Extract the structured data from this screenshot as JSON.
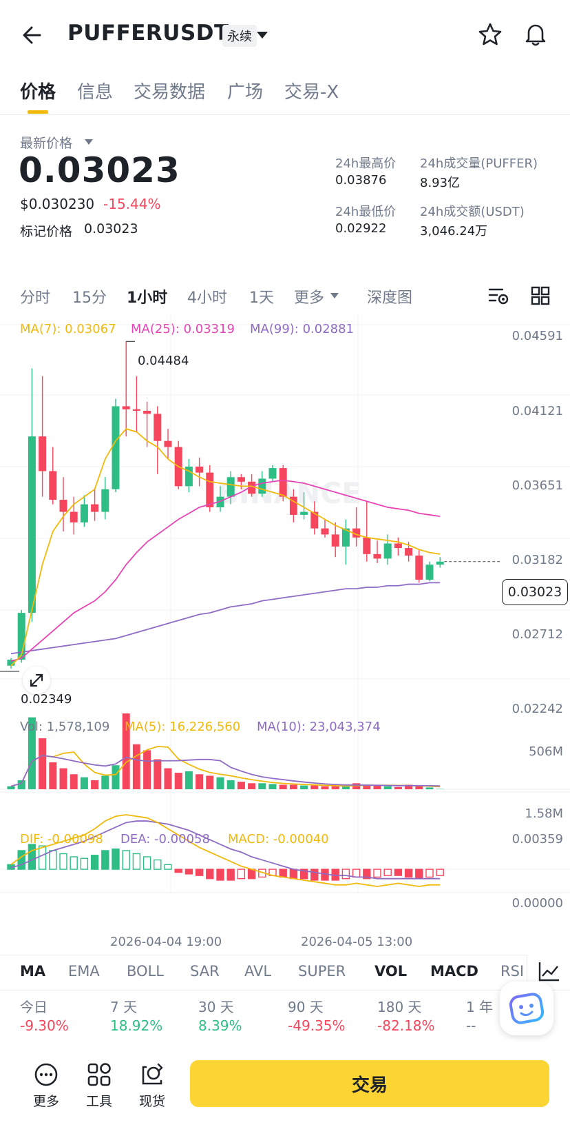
{
  "header": {
    "symbol": "PUFFERUSDT",
    "contract_type": "永续"
  },
  "tabs": [
    "价格",
    "信息",
    "交易数据",
    "广场",
    "交易-X"
  ],
  "price": {
    "latest_label": "最新价格",
    "last": "0.03023",
    "usd": "$0.030230",
    "change": "-15.44%",
    "mark_label": "标记价格",
    "mark": "0.03023"
  },
  "stats": {
    "high_label": "24h最高价",
    "high": "0.03876",
    "vol_label": "24h成交量(PUFFER)",
    "vol": "8.93亿",
    "low_label": "24h最低价",
    "low": "0.02922",
    "turnover_label": "24h成交额(USDT)",
    "turnover": "3,046.24万"
  },
  "timeframes": [
    "分时",
    "15分",
    "1小时",
    "4小时",
    "1天",
    "更多",
    "深度图"
  ],
  "active_timeframe": "1小时",
  "ma_legend": {
    "ma7": "MA(7): 0.03067",
    "ma25": "MA(25): 0.03319",
    "ma99": "MA(99): 0.02881"
  },
  "price_axis": [
    "0.04591",
    "0.04121",
    "0.03651",
    "0.03182",
    "0.02712",
    "0.02242"
  ],
  "high_marker": "0.04484",
  "low_marker": "0.02349",
  "current_price_tag": "0.03023",
  "volume_legend": {
    "vol": "Vol: 1,578,109",
    "ma5": "MA(5): 16,226,560",
    "ma10": "MA(10): 23,043,374"
  },
  "volume_axis": [
    "506M",
    "1.58M"
  ],
  "macd_legend": {
    "dif": "DIF: -0.00098",
    "dea": "DEA: -0.00058",
    "macd": "MACD: -0.00040"
  },
  "macd_axis": [
    "0.00359",
    "0.00000"
  ],
  "time_axis": [
    "2026-04-04 19:00",
    "2026-04-05 13:00"
  ],
  "indicators": [
    "MA",
    "EMA",
    "BOLL",
    "SAR",
    "AVL",
    "SUPER",
    "VOL",
    "MACD",
    "RSI"
  ],
  "performance": [
    {
      "label": "今日",
      "value": "-9.30%"
    },
    {
      "label": "7 天",
      "value": "18.92%"
    },
    {
      "label": "30 天",
      "value": "8.39%"
    },
    {
      "label": "90 天",
      "value": "-49.35%"
    },
    {
      "label": "180 天",
      "value": "-82.18%"
    },
    {
      "label": "1 年",
      "value": "--"
    }
  ],
  "bottom_nav": {
    "more": "更多",
    "tools": "工具",
    "spot": "现货",
    "trade": "交易"
  },
  "watermark": "BINANCE",
  "colors": {
    "up": "#2ebd85",
    "down": "#f6465d",
    "accent": "#fcd535",
    "ma7": "#f0b90b",
    "ma25": "#e645b5",
    "ma99": "#8e6bc4"
  },
  "chart_data": {
    "type": "candlestick",
    "interval": "1小时",
    "ohlc": [
      [
        0.0233,
        0.0238,
        0.0231,
        0.0237
      ],
      [
        0.0237,
        0.027,
        0.0235,
        0.0268
      ],
      [
        0.0268,
        0.043,
        0.0262,
        0.0385
      ],
      [
        0.0385,
        0.0425,
        0.0345,
        0.0362
      ],
      [
        0.0362,
        0.0378,
        0.034,
        0.0343
      ],
      [
        0.0343,
        0.0358,
        0.0322,
        0.0335
      ],
      [
        0.0335,
        0.0345,
        0.032,
        0.0328
      ],
      [
        0.0328,
        0.0346,
        0.0325,
        0.034
      ],
      [
        0.034,
        0.0351,
        0.0329,
        0.0335
      ],
      [
        0.0335,
        0.0358,
        0.033,
        0.035
      ],
      [
        0.035,
        0.041,
        0.0348,
        0.0405
      ],
      [
        0.0405,
        0.0448,
        0.0385,
        0.0403
      ],
      [
        0.0403,
        0.0425,
        0.0388,
        0.0402
      ],
      [
        0.0402,
        0.0408,
        0.0378,
        0.04
      ],
      [
        0.04,
        0.0405,
        0.036,
        0.0382
      ],
      [
        0.0382,
        0.039,
        0.037,
        0.0378
      ],
      [
        0.0378,
        0.0382,
        0.035,
        0.0352
      ],
      [
        0.0352,
        0.037,
        0.0348,
        0.0365
      ],
      [
        0.0365,
        0.0371,
        0.0352,
        0.0361
      ],
      [
        0.0361,
        0.0366,
        0.0335,
        0.0338
      ],
      [
        0.0338,
        0.0352,
        0.0335,
        0.0345
      ],
      [
        0.0345,
        0.0362,
        0.034,
        0.0358
      ],
      [
        0.0358,
        0.036,
        0.035,
        0.0355
      ],
      [
        0.0355,
        0.036,
        0.0345,
        0.0347
      ],
      [
        0.0347,
        0.0362,
        0.0345,
        0.0357
      ],
      [
        0.0357,
        0.0366,
        0.0355,
        0.0364
      ],
      [
        0.0364,
        0.0366,
        0.0342,
        0.0345
      ],
      [
        0.0345,
        0.035,
        0.0328,
        0.0333
      ],
      [
        0.0333,
        0.0348,
        0.033,
        0.0335
      ],
      [
        0.0335,
        0.0342,
        0.032,
        0.0324
      ],
      [
        0.0324,
        0.033,
        0.0318,
        0.032
      ],
      [
        0.032,
        0.0328,
        0.0305,
        0.0312
      ],
      [
        0.0312,
        0.033,
        0.03,
        0.0324
      ],
      [
        0.0324,
        0.0338,
        0.0312,
        0.0318
      ],
      [
        0.0318,
        0.0342,
        0.0302,
        0.0307
      ],
      [
        0.0307,
        0.0316,
        0.0301,
        0.0304
      ],
      [
        0.0304,
        0.032,
        0.03,
        0.0314
      ],
      [
        0.0314,
        0.0318,
        0.0306,
        0.0311
      ],
      [
        0.0311,
        0.0315,
        0.0302,
        0.0306
      ],
      [
        0.0306,
        0.031,
        0.0288,
        0.029
      ],
      [
        0.029,
        0.0302,
        0.0289,
        0.03
      ],
      [
        0.03,
        0.0305,
        0.0298,
        0.0302
      ]
    ],
    "ma7": [
      0.0233,
      0.024,
      0.027,
      0.03,
      0.0322,
      0.0332,
      0.034,
      0.0345,
      0.035,
      0.037,
      0.0382,
      0.039,
      0.0388,
      0.0382,
      0.0378,
      0.037,
      0.0365,
      0.0362,
      0.0358,
      0.0355,
      0.0354,
      0.0353,
      0.0352,
      0.0352,
      0.035,
      0.0348,
      0.0346,
      0.0342,
      0.0338,
      0.0334,
      0.033,
      0.0326,
      0.0323,
      0.032,
      0.0318,
      0.0317,
      0.0316,
      0.0315,
      0.0313,
      0.031,
      0.0308,
      0.0307
    ],
    "ma25": [
      0.0236,
      0.0238,
      0.0244,
      0.025,
      0.0256,
      0.0262,
      0.0268,
      0.0272,
      0.0276,
      0.0282,
      0.029,
      0.03,
      0.0308,
      0.0315,
      0.032,
      0.0325,
      0.033,
      0.0334,
      0.0338,
      0.034,
      0.0342,
      0.0345,
      0.0348,
      0.0352,
      0.0354,
      0.0355,
      0.0356,
      0.0355,
      0.0354,
      0.0352,
      0.035,
      0.0348,
      0.0346,
      0.0344,
      0.0342,
      0.034,
      0.0338,
      0.0337,
      0.0336,
      0.0334,
      0.0333,
      0.0332
    ],
    "ma99": [
      0.0241,
      0.0242,
      0.0243,
      0.0244,
      0.0245,
      0.0246,
      0.0247,
      0.0248,
      0.0249,
      0.025,
      0.0251,
      0.0253,
      0.0255,
      0.0257,
      0.0259,
      0.0261,
      0.0263,
      0.0265,
      0.0267,
      0.0268,
      0.027,
      0.0272,
      0.0273,
      0.0274,
      0.0276,
      0.0277,
      0.0278,
      0.0279,
      0.028,
      0.0281,
      0.0282,
      0.0283,
      0.0284,
      0.0284,
      0.0285,
      0.0285,
      0.0286,
      0.0286,
      0.0287,
      0.0287,
      0.0288,
      0.0288
    ],
    "volume_millions": [
      20,
      60,
      480,
      340,
      180,
      140,
      100,
      80,
      60,
      90,
      160,
      506,
      300,
      260,
      200,
      140,
      110,
      120,
      100,
      90,
      80,
      60,
      50,
      40,
      40,
      35,
      30,
      30,
      25,
      25,
      20,
      20,
      18,
      40,
      30,
      25,
      20,
      15,
      30,
      25,
      12,
      2
    ],
    "volume_ylim": [
      0,
      506
    ],
    "ylim": [
      0.02242,
      0.04591
    ],
    "macd_hist": [
      0.0003,
      0.0012,
      0.0016,
      0.0015,
      0.0012,
      0.001,
      0.0008,
      0.0007,
      0.0009,
      0.0012,
      0.0013,
      0.0012,
      0.001,
      0.0008,
      0.0006,
      0.0003,
      -0.0002,
      -0.0003,
      -0.0004,
      -0.0006,
      -0.0007,
      -0.0007,
      -0.0006,
      -0.0006,
      -0.0005,
      -0.0004,
      -0.0005,
      -0.0006,
      -0.0006,
      -0.0007,
      -0.0007,
      -0.0007,
      -0.0006,
      -0.0005,
      -0.0006,
      -0.0005,
      -0.0004,
      -0.0004,
      -0.0005,
      -0.0006,
      -0.0005,
      -0.0004
    ],
    "dif": [
      0.0003,
      0.0008,
      0.0012,
      0.0014,
      0.0016,
      0.0018,
      0.002,
      0.0022,
      0.0026,
      0.0031,
      0.0034,
      0.0035,
      0.0034,
      0.0033,
      0.003,
      0.0026,
      0.0022,
      0.0018,
      0.0014,
      0.0011,
      0.0008,
      0.0005,
      0.0002,
      0.0,
      -0.0002,
      -0.0004,
      -0.0005,
      -0.0006,
      -0.0007,
      -0.0008,
      -0.0009,
      -0.001,
      -0.001,
      -0.0009,
      -0.001,
      -0.0011,
      -0.001,
      -0.0009,
      -0.001,
      -0.0011,
      -0.001,
      -0.001
    ],
    "dea": [
      0.0001,
      0.0003,
      0.0006,
      0.0009,
      0.0012,
      0.0014,
      0.0016,
      0.0018,
      0.0021,
      0.0024,
      0.0027,
      0.003,
      0.0031,
      0.0031,
      0.003,
      0.0029,
      0.0027,
      0.0025,
      0.0022,
      0.0019,
      0.0016,
      0.0013,
      0.0011,
      0.0008,
      0.0006,
      0.0004,
      0.0002,
      0.0,
      -0.0001,
      -0.0002,
      -0.0003,
      -0.0004,
      -0.0004,
      -0.0005,
      -0.0005,
      -0.0006,
      -0.0006,
      -0.0006,
      -0.0006,
      -0.0006,
      -0.0006,
      -0.0006
    ],
    "macd_ylim": [
      -0.0015,
      0.00359
    ]
  }
}
